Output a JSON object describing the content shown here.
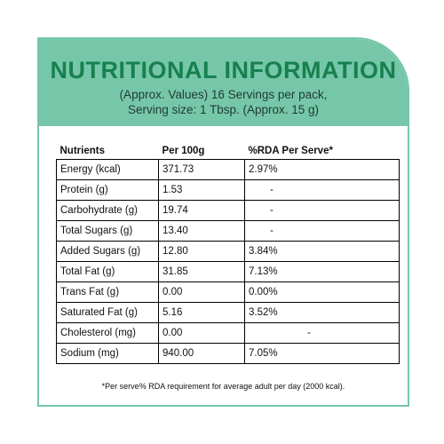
{
  "colors": {
    "header_bg": "#76c7a9",
    "title": "#17804f",
    "border": "#76c7a9"
  },
  "header": {
    "title": "NUTRITIONAL INFORMATION",
    "subtitle_line1": "(Approx. Values) 16 Servings per pack,",
    "subtitle_line2": "Serving size: 1 Tbsp. (Approx. 15 g)"
  },
  "table": {
    "columns": [
      "Nutrients",
      "Per 100g",
      "%RDA Per Serve*"
    ],
    "rows": [
      {
        "nutrient": "Energy (kcal)",
        "per100g": "371.73",
        "rda": "2.97%"
      },
      {
        "nutrient": "Protein (g)",
        "per100g": "1.53",
        "rda": "-"
      },
      {
        "nutrient": "Carbohydrate (g)",
        "per100g": "19.74",
        "rda": "-"
      },
      {
        "nutrient": "Total Sugars (g)",
        "per100g": "13.40",
        "rda": "-"
      },
      {
        "nutrient": "Added Sugars (g)",
        "per100g": "12.80",
        "rda": "3.84%"
      },
      {
        "nutrient": "Total Fat (g)",
        "per100g": "31.85",
        "rda": "7.13%"
      },
      {
        "nutrient": "Trans Fat (g)",
        "per100g": "0.00",
        "rda": "0.00%"
      },
      {
        "nutrient": "Saturated Fat (g)",
        "per100g": "5.16",
        "rda": "3.52%"
      },
      {
        "nutrient": "Cholesterol (mg)",
        "per100g": "0.00",
        "rda": "-"
      },
      {
        "nutrient": "Sodium (mg)",
        "per100g": "940.00",
        "rda": "7.05%"
      }
    ]
  },
  "footnote": "*Per serve% RDA requirement for average adult per day (2000 kcal)."
}
